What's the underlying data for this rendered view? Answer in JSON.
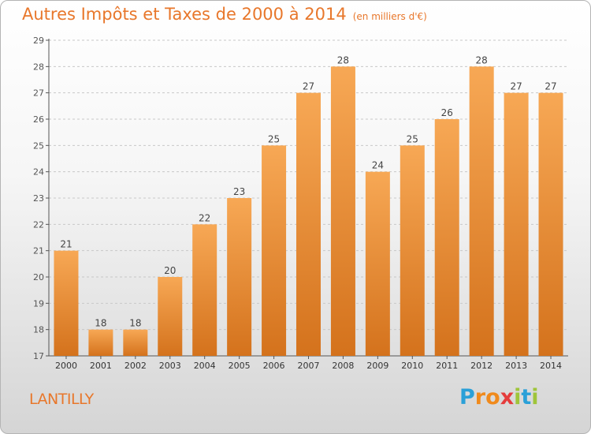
{
  "header": {
    "title": "Autres Impôts et Taxes de 2000 à 2014",
    "unit": "(en milliers d'€)"
  },
  "footer": {
    "commune": "LANTILLY",
    "logo": {
      "letters": [
        "P",
        "r",
        "o",
        "x",
        "i",
        "t",
        "i"
      ],
      "colors": [
        "#2aa0d8",
        "#f08a1c",
        "#f08a1c",
        "#e53c3c",
        "#9fc53a",
        "#2aa0d8",
        "#9fc53a"
      ]
    }
  },
  "colors": {
    "title": "#e8772b",
    "bar_light": "#f7a855",
    "bar_dark": "#d4721c",
    "axis": "#555555",
    "grid": "#c8c8c8"
  },
  "chart_data": {
    "type": "bar",
    "title": "Autres Impôts et Taxes de 2000 à 2014",
    "xlabel": "",
    "ylabel": "",
    "categories": [
      "2000",
      "2001",
      "2002",
      "2003",
      "2004",
      "2005",
      "2006",
      "2007",
      "2008",
      "2009",
      "2010",
      "2011",
      "2012",
      "2013",
      "2014"
    ],
    "values": [
      21,
      18,
      18,
      20,
      22,
      23,
      25,
      27,
      28,
      24,
      25,
      26,
      28,
      27,
      27
    ],
    "ylim": [
      17,
      29
    ],
    "yticks": [
      17,
      18,
      19,
      20,
      21,
      22,
      23,
      24,
      25,
      26,
      27,
      28,
      29
    ],
    "grid": "horizontal dashed",
    "data_labels": true
  }
}
